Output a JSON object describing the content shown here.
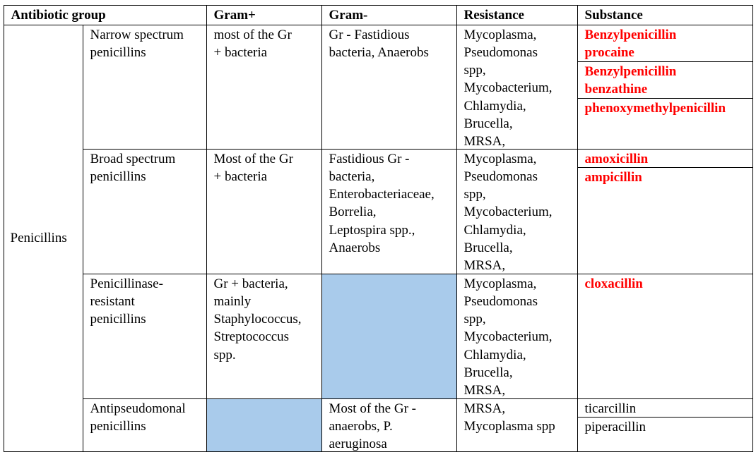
{
  "table": {
    "header": [
      "Antibiotic group",
      "Gram+",
      "Gram-",
      "Resistance",
      "Substance"
    ],
    "group": "Penicillins",
    "empty_color": "#a9cbeb",
    "rows": [
      {
        "subgroup": [
          "Narrow spectrum",
          "penicillins"
        ],
        "gram_pos": [
          "most of the Gr",
          "+ bacteria"
        ],
        "gram_neg": [
          "Gr - Fastidious",
          "bacteria, Anaerobs"
        ],
        "resistance": [
          "Mycoplasma,",
          "Pseudomonas",
          "spp,",
          "Mycobacterium,",
          "Chlamydia,",
          "Brucella,",
          "MRSA,"
        ],
        "substances": [
          {
            "lines": [
              "Benzylpenicillin",
              "procaine"
            ],
            "color": "#ff0000"
          },
          {
            "lines": [
              "Benzylpenicillin",
              "benzathine"
            ],
            "color": "#ff0000"
          },
          {
            "lines": [
              "phenoxymethylpenicillin"
            ],
            "color": "#ff0000"
          }
        ]
      },
      {
        "subgroup": [
          "Broad spectrum",
          "penicillins"
        ],
        "gram_pos": [
          "Most of the Gr",
          "+ bacteria"
        ],
        "gram_neg": [
          "Fastidious Gr -",
          "bacteria,",
          "Enterobacteriaceae,",
          "Borrelia,",
          "Leptospira spp.,",
          "Anaerobs"
        ],
        "resistance": [
          "Mycoplasma,",
          "Pseudomonas",
          "spp,",
          "Mycobacterium,",
          "Chlamydia,",
          "Brucella,",
          "MRSA,"
        ],
        "substances": [
          {
            "lines": [
              "amoxicillin"
            ],
            "color": "#ff0000"
          },
          {
            "lines": [
              "ampicillin"
            ],
            "color": "#ff0000"
          }
        ]
      },
      {
        "subgroup": [
          "Penicillinase-",
          "resistant",
          "penicillins"
        ],
        "gram_pos": [
          "Gr + bacteria,",
          "mainly",
          "Staphylococcus,",
          "Streptococcus",
          "spp."
        ],
        "resistance": [
          "Mycoplasma,",
          "Pseudomonas",
          "spp,",
          "Mycobacterium,",
          "Chlamydia,",
          "Brucella,",
          "MRSA,"
        ],
        "substances": [
          {
            "lines": [
              "cloxacillin"
            ],
            "color": "#ff0000"
          }
        ]
      },
      {
        "subgroup": [
          "Antipseudomonal",
          "penicillins"
        ],
        "gram_neg": [
          "Most of the Gr -",
          "anaerobs, P.",
          "aeruginosa"
        ],
        "resistance": [
          "MRSA,",
          "Mycoplasma spp"
        ],
        "substances": [
          {
            "lines": [
              "ticarcillin"
            ],
            "color": "#000000"
          },
          {
            "lines": [
              "piperacillin"
            ],
            "color": "#000000"
          }
        ]
      }
    ]
  }
}
